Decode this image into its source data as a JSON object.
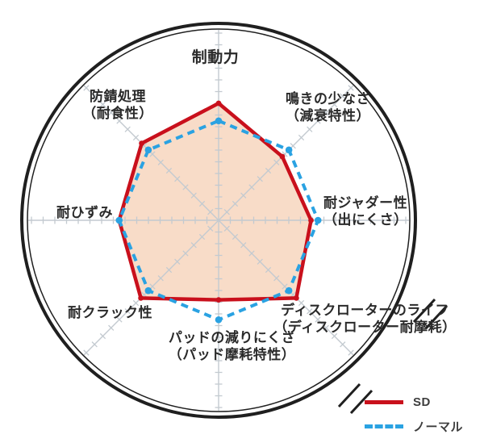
{
  "chart_data": {
    "type": "radar",
    "axes_count": 8,
    "grid": true,
    "legend_position": "bottom-right",
    "scale": {
      "min": 0,
      "max": 10,
      "tick_interval": 1,
      "grid_ticks_shown": 16
    },
    "categories": [
      {
        "line1": "制動力",
        "line2": ""
      },
      {
        "line1": "鳴きの少なさ",
        "line2": "（減衰特性）"
      },
      {
        "line1": "耐ジャダー性",
        "line2": "（出にくさ）"
      },
      {
        "line1": "ディスクローターのライフ",
        "line2": "（ディスクローター耐摩耗）"
      },
      {
        "line1": "パッドの減りにくさ",
        "line2": "（パッド摩耗特性）"
      },
      {
        "line1": "耐クラック性",
        "line2": ""
      },
      {
        "line1": "耐ひずみ",
        "line2": ""
      },
      {
        "line1": "防錆処理",
        "line2": "（耐食性）"
      }
    ],
    "series": [
      {
        "name": "SD",
        "style": "solid",
        "color": "#c9101c",
        "values": [
          10,
          7.7,
          7.9,
          9.4,
          6.8,
          9.4,
          8.5,
          9.3
        ]
      },
      {
        "name": "ノーマル",
        "style": "dashed",
        "color": "#2aa2e2",
        "values": [
          8.5,
          8.5,
          8.5,
          8.5,
          8.5,
          8.5,
          8.5,
          8.5
        ]
      }
    ]
  },
  "colors": {
    "sd": "#c9101c",
    "normal": "#2aa2e2",
    "fill": "#f8dcc8",
    "grid": "#c3cad0",
    "ring": "#1f1f1f",
    "text": "#2a2a2a"
  }
}
